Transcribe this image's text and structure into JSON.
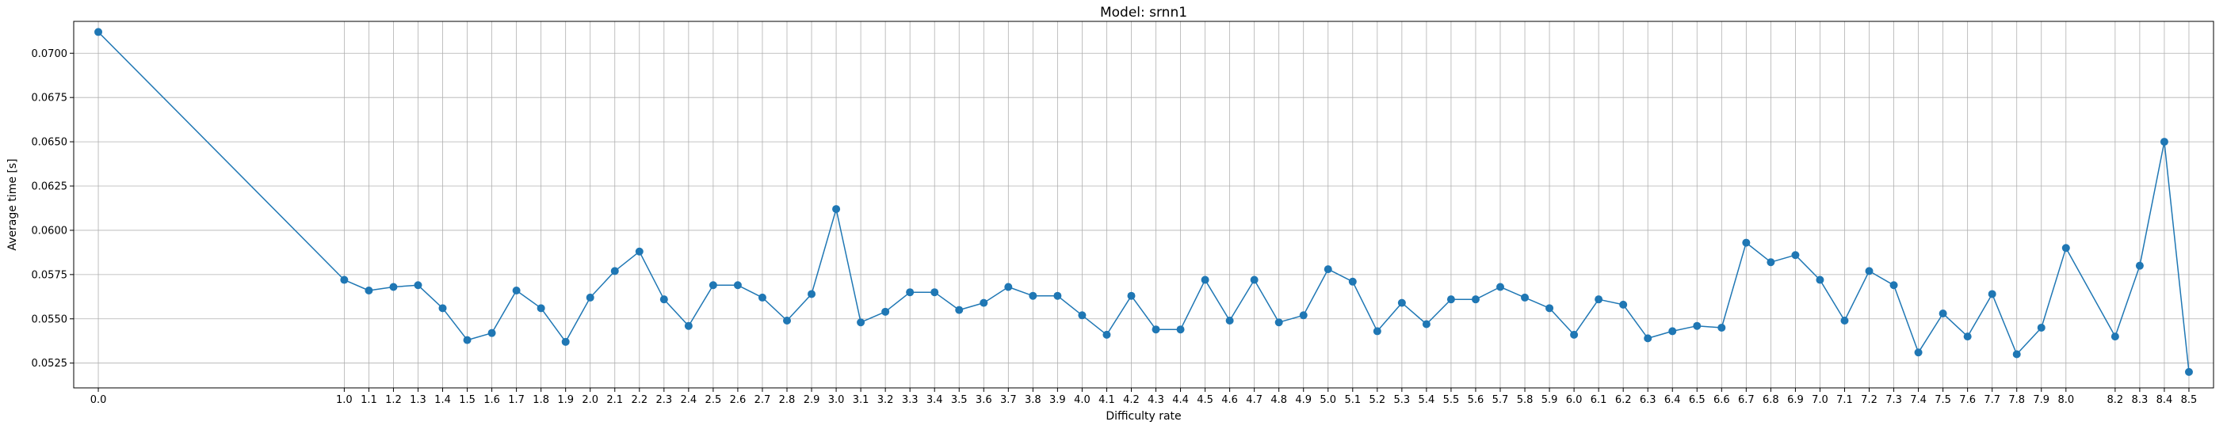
{
  "chart_data": {
    "type": "line",
    "title": "Model: srnn1",
    "xlabel": "Difficulty rate",
    "ylabel": "Average time [s]",
    "xlim": [
      -0.1,
      8.6
    ],
    "ylim": [
      0.0511,
      0.0718
    ],
    "grid": true,
    "line_color": "#1f77b4",
    "marker": "circle",
    "x_ticks": [
      "0.0",
      "1.0",
      "1.1",
      "1.2",
      "1.3",
      "1.4",
      "1.5",
      "1.6",
      "1.7",
      "1.8",
      "1.9",
      "2.0",
      "2.1",
      "2.2",
      "2.3",
      "2.4",
      "2.5",
      "2.6",
      "2.7",
      "2.8",
      "2.9",
      "3.0",
      "3.1",
      "3.2",
      "3.3",
      "3.4",
      "3.5",
      "3.6",
      "3.7",
      "3.8",
      "3.9",
      "4.0",
      "4.1",
      "4.2",
      "4.3",
      "4.4",
      "4.5",
      "4.6",
      "4.7",
      "4.8",
      "4.9",
      "5.0",
      "5.1",
      "5.2",
      "5.3",
      "5.4",
      "5.5",
      "5.6",
      "5.7",
      "5.8",
      "5.9",
      "6.0",
      "6.1",
      "6.2",
      "6.3",
      "6.4",
      "6.5",
      "6.6",
      "6.7",
      "6.8",
      "6.9",
      "7.0",
      "7.1",
      "7.2",
      "7.3",
      "7.4",
      "7.5",
      "7.6",
      "7.7",
      "7.8",
      "7.9",
      "8.0",
      "8.2",
      "8.3",
      "8.4",
      "8.5"
    ],
    "y_ticks": [
      "0.0525",
      "0.0550",
      "0.0575",
      "0.0600",
      "0.0625",
      "0.0650",
      "0.0675",
      "0.0700"
    ],
    "x": [
      0.0,
      1.0,
      1.1,
      1.2,
      1.3,
      1.4,
      1.5,
      1.6,
      1.7,
      1.8,
      1.9,
      2.0,
      2.1,
      2.2,
      2.3,
      2.4,
      2.5,
      2.6,
      2.7,
      2.8,
      2.9,
      3.0,
      3.1,
      3.2,
      3.3,
      3.4,
      3.5,
      3.6,
      3.7,
      3.8,
      3.9,
      4.0,
      4.1,
      4.2,
      4.3,
      4.4,
      4.5,
      4.6,
      4.7,
      4.8,
      4.9,
      5.0,
      5.1,
      5.2,
      5.3,
      5.4,
      5.5,
      5.6,
      5.7,
      5.8,
      5.9,
      6.0,
      6.1,
      6.2,
      6.3,
      6.4,
      6.5,
      6.6,
      6.7,
      6.8,
      6.9,
      7.0,
      7.1,
      7.2,
      7.3,
      7.4,
      7.5,
      7.6,
      7.7,
      7.8,
      7.9,
      8.0,
      8.2,
      8.3,
      8.4,
      8.5
    ],
    "y": [
      0.0712,
      0.0572,
      0.0566,
      0.0568,
      0.0569,
      0.0556,
      0.0538,
      0.0542,
      0.0566,
      0.0556,
      0.0537,
      0.0562,
      0.0577,
      0.0588,
      0.0561,
      0.0546,
      0.0569,
      0.0569,
      0.0562,
      0.0549,
      0.0564,
      0.0612,
      0.0548,
      0.0554,
      0.0565,
      0.0565,
      0.0555,
      0.0559,
      0.0568,
      0.0563,
      0.0563,
      0.0552,
      0.0541,
      0.0563,
      0.0544,
      0.0544,
      0.0572,
      0.0549,
      0.0572,
      0.0548,
      0.0552,
      0.0578,
      0.0571,
      0.0543,
      0.0559,
      0.0547,
      0.0561,
      0.0561,
      0.0568,
      0.0562,
      0.0556,
      0.0541,
      0.0561,
      0.0558,
      0.0539,
      0.0543,
      0.0546,
      0.0545,
      0.0593,
      0.0582,
      0.0586,
      0.0572,
      0.0549,
      0.0577,
      0.0569,
      0.0531,
      0.0553,
      0.054,
      0.0564,
      0.053,
      0.0545,
      0.059,
      0.054,
      0.058,
      0.065,
      0.052
    ]
  }
}
